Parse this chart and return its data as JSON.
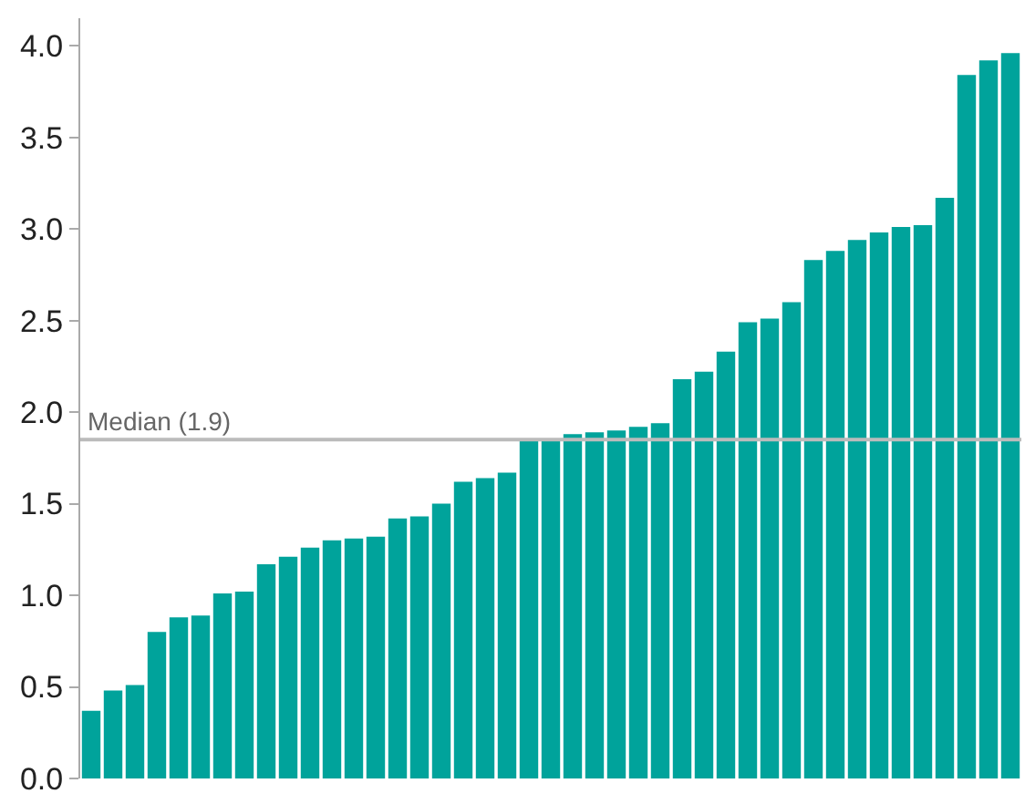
{
  "chart_data": {
    "type": "bar",
    "categories": [
      null,
      null,
      null,
      null,
      null,
      null,
      null,
      null,
      null,
      null,
      null,
      null,
      null,
      null,
      null,
      null,
      null,
      null,
      null,
      null,
      null,
      null,
      null,
      null,
      null,
      null,
      null,
      null,
      null,
      null,
      null,
      null,
      null,
      null,
      null,
      null,
      null,
      null,
      null,
      null,
      null,
      null,
      null
    ],
    "values": [
      0.37,
      0.48,
      0.51,
      0.8,
      0.88,
      0.89,
      1.01,
      1.02,
      1.17,
      1.21,
      1.26,
      1.3,
      1.31,
      1.32,
      1.42,
      1.43,
      1.5,
      1.62,
      1.64,
      1.67,
      1.85,
      1.85,
      1.88,
      1.89,
      1.9,
      1.92,
      1.94,
      2.18,
      2.22,
      2.33,
      2.49,
      2.51,
      2.6,
      2.83,
      2.88,
      2.94,
      2.98,
      3.01,
      3.02,
      3.17,
      3.84,
      3.92,
      3.96
    ],
    "color": "#00a39b",
    "ylim": [
      0,
      4.15
    ],
    "yticks": [
      {
        "value": 0,
        "label": "0.0"
      },
      0.5,
      {
        "value": 1,
        "label": "1.0"
      },
      1.5,
      {
        "value": 2,
        "label": "2.0"
      },
      2.5,
      {
        "value": 3,
        "label": "3.0"
      },
      3.5,
      {
        "value": 4,
        "label": "4.0"
      }
    ],
    "ref_lines": [
      {
        "axis": "y",
        "value": 1.85,
        "label": "Median (1.9)",
        "color": "#bbbbbb"
      }
    ],
    "grid": false,
    "legend": false,
    "tick_labels": "y"
  }
}
